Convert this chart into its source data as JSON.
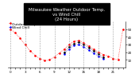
{
  "title": "Milwaukee Weather Outdoor Temp.\nvs Wind Chill\n(24 Hours)",
  "legend": [
    "Outdoor Temp",
    "Wind Chill"
  ],
  "bg_color": "#ffffff",
  "grid_color": "#888888",
  "hours": [
    0,
    1,
    2,
    3,
    4,
    5,
    6,
    7,
    8,
    9,
    10,
    11,
    12,
    13,
    14,
    15,
    16,
    17,
    18,
    19,
    20,
    21,
    22,
    23
  ],
  "temp": [
    50,
    45,
    38,
    30,
    22,
    16,
    12,
    9,
    10,
    14,
    19,
    24,
    30,
    34,
    35,
    32,
    28,
    24,
    20,
    17,
    15,
    12,
    10,
    50
  ],
  "wind_chill": [
    null,
    null,
    null,
    null,
    null,
    null,
    null,
    null,
    null,
    null,
    null,
    18,
    24,
    29,
    30,
    27,
    23,
    19,
    15,
    12,
    null,
    null,
    null,
    null
  ],
  "black_x": [
    11,
    12,
    13,
    14,
    15,
    16,
    17,
    18,
    19
  ],
  "black_y": [
    20,
    27,
    31,
    33,
    30,
    26,
    22,
    18,
    14
  ],
  "temp_color": "#ff0000",
  "wc_color": "#0000ff",
  "dot_color": "#000000",
  "ylim": [
    0,
    60
  ],
  "yticks": [
    10,
    20,
    30,
    40,
    50
  ],
  "title_fontsize": 4.0,
  "legend_fontsize": 3.2,
  "axis_fontsize": 3.0,
  "title_bg": "#000000",
  "title_fg": "#ffffff"
}
